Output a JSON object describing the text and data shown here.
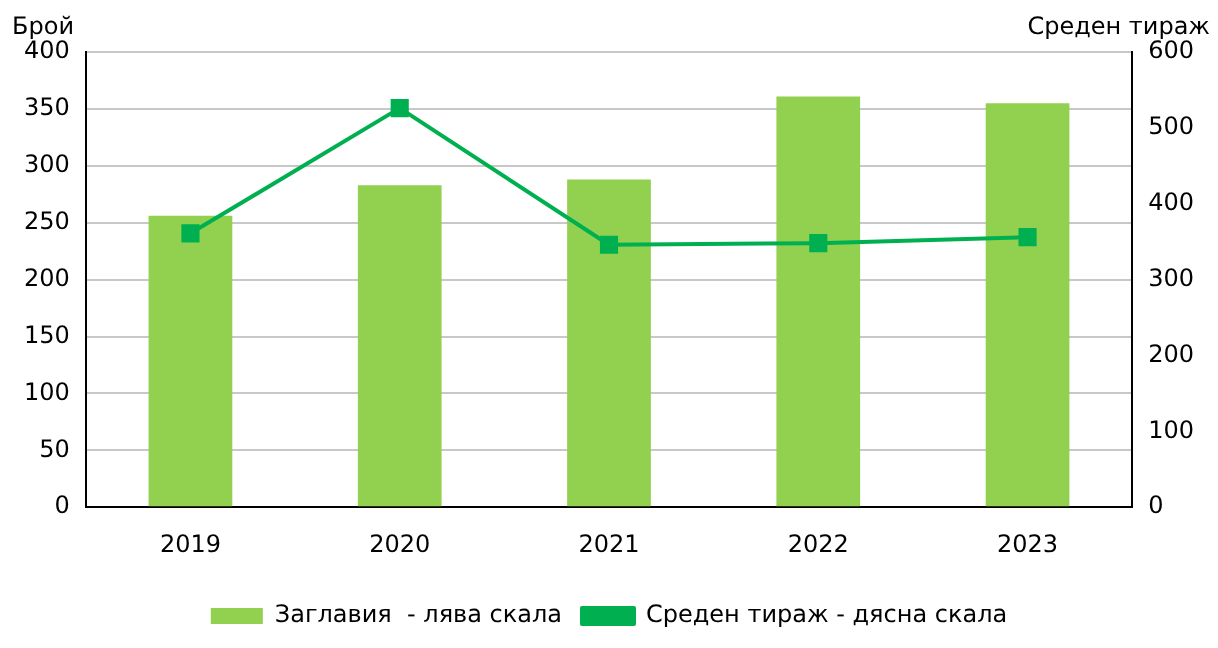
{
  "chart_data": {
    "type": "bar",
    "ylabel": "Брой",
    "y2label": "Среден тираж",
    "categories": [
      "2019",
      "2020",
      "2021",
      "2022",
      "2023"
    ],
    "series": [
      {
        "name": "Заглавия  - лява скала",
        "color": "#92d050",
        "values": [
          256,
          283,
          288,
          361,
          355
        ]
      },
      {
        "name": "Среден тираж - дясна скала",
        "type": "line",
        "axis": "y2",
        "color": "#00b050",
        "values": [
          361,
          526,
          346,
          348,
          356
        ]
      }
    ],
    "ylim": [
      0,
      400
    ],
    "yticks": [
      0,
      50,
      100,
      150,
      200,
      250,
      300,
      350,
      400
    ],
    "y2lim": [
      0,
      600
    ],
    "y2ticks": [
      0,
      100,
      200,
      300,
      400,
      500,
      600
    ],
    "grid": "y",
    "legend": "bottom",
    "marker": "square"
  }
}
